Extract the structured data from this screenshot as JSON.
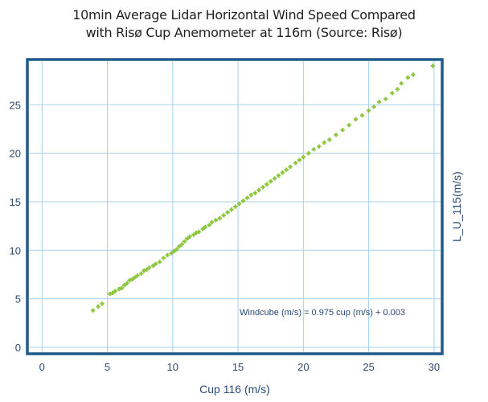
{
  "chart_data": {
    "type": "scatter",
    "title_line1": "10min Average Lidar Horizontal Wind Speed Compared",
    "title_line2": "with Risø Cup Anemometer at 116m (Source: Risø)",
    "xlabel": "Cup 116 (m/s)",
    "ylabel": "L_U_115(m/s)",
    "xlim": [
      -1,
      30.5
    ],
    "ylim": [
      -0.5,
      29.5
    ],
    "xticks": [
      0,
      5,
      10,
      15,
      20,
      25,
      30
    ],
    "yticks": [
      0,
      5,
      10,
      15,
      20,
      25
    ],
    "grid": true,
    "marker": "plus",
    "marker_color": "#8cc63f",
    "frame_color": "#1f5a8c",
    "grid_color": "#a8d0ec",
    "annotation": "Windcube (m/s) = 0.975 cup (m/s) + 0.003",
    "fit": {
      "slope": 0.975,
      "intercept": 0.003
    },
    "points": [
      [
        3.9,
        3.8
      ],
      [
        4.3,
        4.2
      ],
      [
        4.6,
        4.5
      ],
      [
        5.2,
        5.5
      ],
      [
        5.4,
        5.6
      ],
      [
        5.6,
        5.8
      ],
      [
        5.9,
        6.0
      ],
      [
        6.1,
        6.1
      ],
      [
        6.3,
        6.4
      ],
      [
        6.5,
        6.6
      ],
      [
        6.7,
        6.9
      ],
      [
        6.9,
        7.0
      ],
      [
        7.1,
        7.2
      ],
      [
        7.3,
        7.4
      ],
      [
        7.6,
        7.6
      ],
      [
        7.8,
        7.9
      ],
      [
        8.0,
        8.0
      ],
      [
        8.2,
        8.2
      ],
      [
        8.5,
        8.4
      ],
      [
        8.7,
        8.6
      ],
      [
        9.0,
        8.8
      ],
      [
        9.3,
        9.2
      ],
      [
        9.6,
        9.5
      ],
      [
        9.9,
        9.7
      ],
      [
        10.1,
        9.9
      ],
      [
        10.3,
        10.1
      ],
      [
        10.5,
        10.4
      ],
      [
        10.7,
        10.6
      ],
      [
        10.9,
        10.9
      ],
      [
        11.1,
        11.2
      ],
      [
        11.3,
        11.4
      ],
      [
        11.6,
        11.6
      ],
      [
        11.8,
        11.8
      ],
      [
        12.0,
        11.9
      ],
      [
        12.3,
        12.2
      ],
      [
        12.5,
        12.4
      ],
      [
        12.8,
        12.6
      ],
      [
        13.0,
        12.9
      ],
      [
        13.3,
        13.1
      ],
      [
        13.6,
        13.3
      ],
      [
        13.9,
        13.6
      ],
      [
        14.2,
        13.9
      ],
      [
        14.5,
        14.2
      ],
      [
        14.8,
        14.5
      ],
      [
        15.1,
        14.8
      ],
      [
        15.4,
        15.1
      ],
      [
        15.7,
        15.4
      ],
      [
        16.0,
        15.7
      ],
      [
        16.3,
        15.9
      ],
      [
        16.6,
        16.2
      ],
      [
        16.9,
        16.5
      ],
      [
        17.2,
        16.8
      ],
      [
        17.5,
        17.1
      ],
      [
        17.8,
        17.4
      ],
      [
        18.1,
        17.7
      ],
      [
        18.4,
        18.0
      ],
      [
        18.7,
        18.3
      ],
      [
        19.0,
        18.6
      ],
      [
        19.4,
        19.0
      ],
      [
        19.7,
        19.3
      ],
      [
        20.0,
        19.6
      ],
      [
        20.4,
        20.0
      ],
      [
        20.8,
        20.4
      ],
      [
        21.2,
        20.7
      ],
      [
        21.6,
        21.1
      ],
      [
        22.0,
        21.4
      ],
      [
        22.5,
        21.9
      ],
      [
        23.0,
        22.4
      ],
      [
        23.5,
        22.9
      ],
      [
        24.0,
        23.5
      ],
      [
        24.5,
        23.9
      ],
      [
        25.0,
        24.4
      ],
      [
        25.4,
        24.8
      ],
      [
        25.8,
        25.3
      ],
      [
        26.3,
        25.6
      ],
      [
        26.8,
        26.2
      ],
      [
        27.2,
        26.6
      ],
      [
        27.5,
        27.2
      ],
      [
        28.0,
        27.8
      ],
      [
        28.4,
        28.1
      ],
      [
        29.9,
        29.0
      ]
    ]
  }
}
